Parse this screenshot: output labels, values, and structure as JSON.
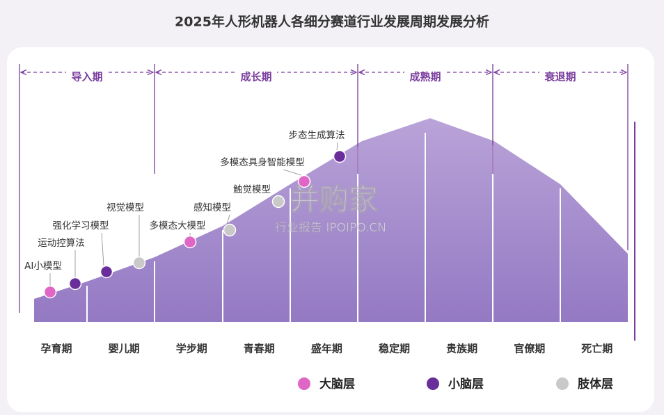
{
  "title": "2025年人形机器人各细分赛道行业发展周期发展分析",
  "phases": [
    "导入期",
    "成长期",
    "成熟期",
    "衰退期"
  ],
  "stages": [
    "孕育期",
    "婴儿期",
    "学步期",
    "青春期",
    "盛年期",
    "稳定期",
    "贵族期",
    "官僚期",
    "死亡期"
  ],
  "layers": [
    {
      "name": "大脑层",
      "color": "#e066c6",
      "points": [
        "AI小模型",
        "多模态大模型",
        "多模态具身智能模型"
      ]
    },
    {
      "name": "小脑层",
      "color": "#6a2e9a",
      "points": [
        "运动控算法",
        "强化学习模型",
        "步态生成算法"
      ]
    },
    {
      "name": "肢体层",
      "color": "#c9c9c9",
      "points": [
        "视觉模型",
        "感知模型",
        "触觉模型"
      ]
    }
  ],
  "watermark": {
    "brand": "并购家",
    "sub": "行业报告 IPOIPO.CN"
  }
}
